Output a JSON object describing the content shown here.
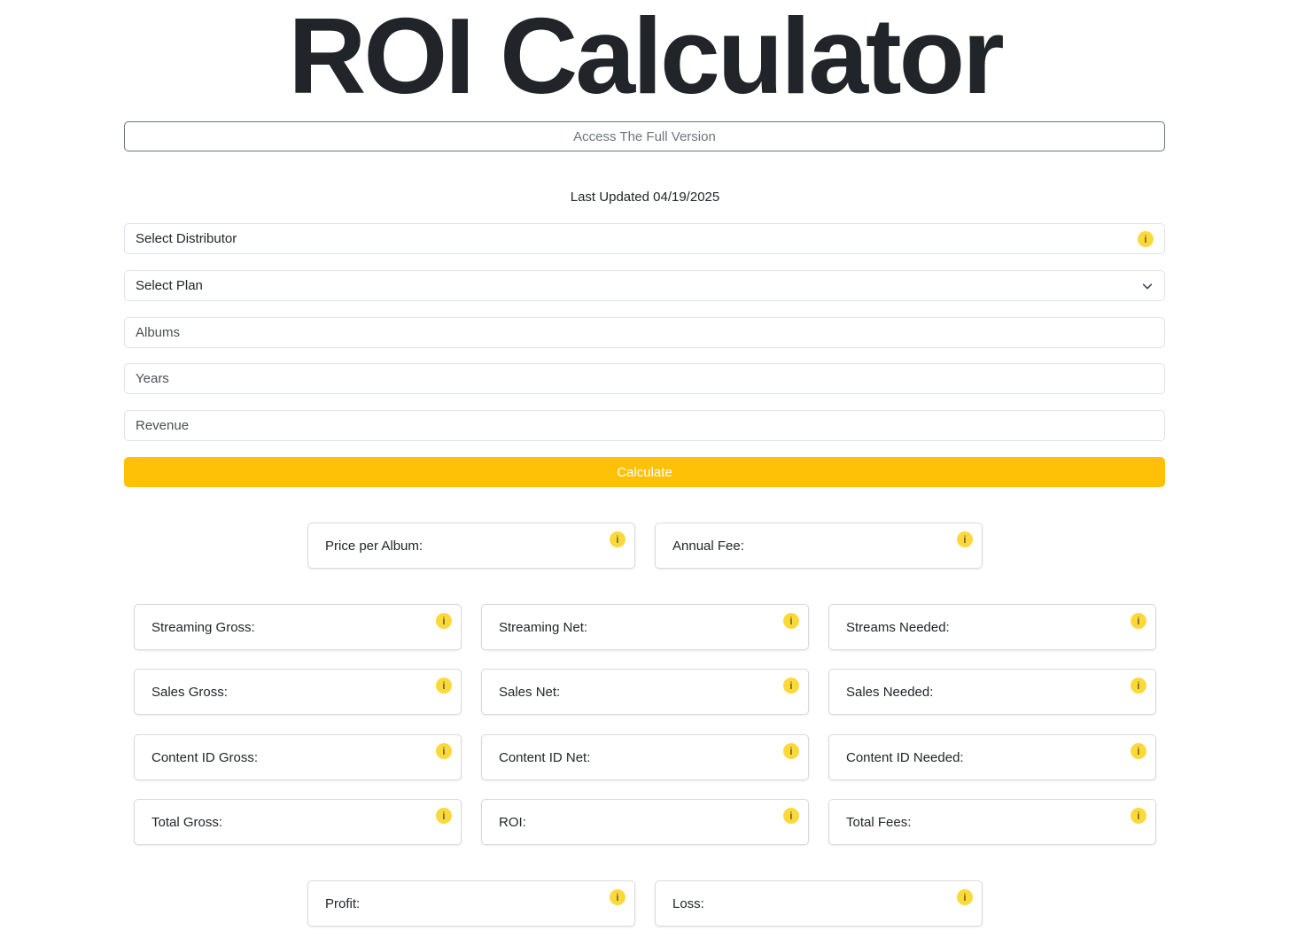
{
  "header": {
    "title": "ROI Calculator",
    "access_label": "Access The Full Version",
    "last_updated": "Last Updated 04/19/2025"
  },
  "form": {
    "distributor_label": "Select Distributor",
    "plan_label": "Select Plan",
    "albums_placeholder": "Albums",
    "years_placeholder": "Years",
    "revenue_placeholder": "Revenue",
    "calculate_label": "Calculate"
  },
  "results": {
    "price_per_album": {
      "label": "Price per Album:",
      "value": ""
    },
    "annual_fee": {
      "label": "Annual Fee:",
      "value": ""
    },
    "streaming_gross": {
      "label": "Streaming Gross:",
      "value": ""
    },
    "streaming_net": {
      "label": "Streaming Net:",
      "value": ""
    },
    "streams_needed": {
      "label": "Streams Needed:",
      "value": ""
    },
    "sales_gross": {
      "label": "Sales Gross:",
      "value": ""
    },
    "sales_net": {
      "label": "Sales Net:",
      "value": ""
    },
    "sales_needed": {
      "label": "Sales Needed:",
      "value": ""
    },
    "content_id_gross": {
      "label": "Content ID Gross:",
      "value": ""
    },
    "content_id_net": {
      "label": "Content ID Net:",
      "value": ""
    },
    "content_id_needed": {
      "label": "Content ID Needed:",
      "value": ""
    },
    "total_gross": {
      "label": "Total Gross:",
      "value": ""
    },
    "roi": {
      "label": "ROI:",
      "value": ""
    },
    "total_fees": {
      "label": "Total Fees:",
      "value": ""
    },
    "profit": {
      "label": "Profit:",
      "value": ""
    },
    "loss": {
      "label": "Loss:",
      "value": ""
    }
  },
  "icons": {
    "info_glyph": "i",
    "info_icon": "info-icon",
    "chevron_icon": "chevron-down-icon"
  },
  "colors": {
    "accent": "#ffc107",
    "info_icon_bg": "#fcd93b",
    "text": "#212529",
    "muted": "#6c757d",
    "border": "#dee2e6"
  }
}
